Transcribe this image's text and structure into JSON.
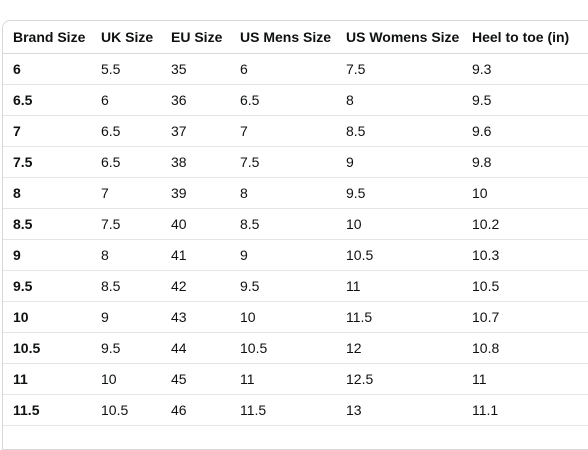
{
  "table": {
    "headers": [
      "Brand Size",
      "UK Size",
      "EU Size",
      "US Mens Size",
      "US Womens Size",
      "Heel to toe (in)"
    ],
    "rows": [
      [
        "6",
        "5.5",
        "35",
        "6",
        "7.5",
        "9.3"
      ],
      [
        "6.5",
        "6",
        "36",
        "6.5",
        "8",
        "9.5"
      ],
      [
        "7",
        "6.5",
        "37",
        "7",
        "8.5",
        "9.6"
      ],
      [
        "7.5",
        "6.5",
        "38",
        "7.5",
        "9",
        "9.8"
      ],
      [
        "8",
        "7",
        "39",
        "8",
        "9.5",
        "10"
      ],
      [
        "8.5",
        "7.5",
        "40",
        "8.5",
        "10",
        "10.2"
      ],
      [
        "9",
        "8",
        "41",
        "9",
        "10.5",
        "10.3"
      ],
      [
        "9.5",
        "8.5",
        "42",
        "9.5",
        "11",
        "10.5"
      ],
      [
        "10",
        "9",
        "43",
        "10",
        "11.5",
        "10.7"
      ],
      [
        "10.5",
        "9.5",
        "44",
        "10.5",
        "12",
        "10.8"
      ],
      [
        "11",
        "10",
        "45",
        "11",
        "12.5",
        "11"
      ],
      [
        "11.5",
        "10.5",
        "46",
        "11.5",
        "13",
        "11.1"
      ],
      [
        "",
        "",
        "",
        "",
        "",
        ""
      ]
    ]
  }
}
